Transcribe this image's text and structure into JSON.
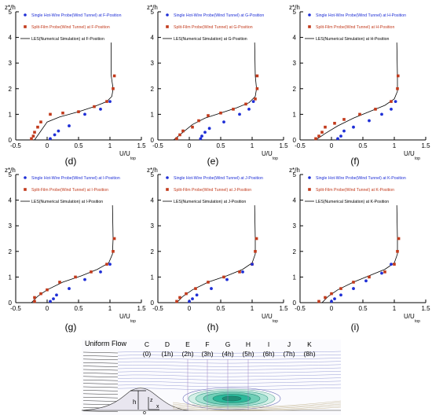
{
  "figure": {
    "panel_captions": [
      "(d)",
      "(e)",
      "(f)",
      "(g)",
      "(h)",
      "(i)"
    ],
    "axis_labels": {
      "y": "z*/h",
      "x_main": "U/U",
      "x_sub": "top"
    },
    "x_ticks": [
      "-0.5",
      "0",
      "0.5",
      "1",
      "1.5"
    ],
    "y_ticks": [
      "0",
      "1",
      "2",
      "3",
      "4",
      "5"
    ],
    "colors": {
      "hotwire": "#1f2fd6",
      "splitfilm": "#c23a1c",
      "les": "#000000",
      "contour_fill": "#2bb89a",
      "flow_lines": "#8a8fd0"
    }
  },
  "chart_data": [
    {
      "type": "scatter",
      "panel": "(d)",
      "xlim": [
        -0.5,
        1.5
      ],
      "ylim": [
        0,
        5
      ],
      "xlabel": "U/U top",
      "ylabel": "z*/h",
      "legend_placement": "top",
      "series": [
        {
          "name": "Single Hot-Wire Probe(Wind Tunnel) at F-Position",
          "marker": "circle",
          "x": [
            0.05,
            0.12,
            0.18,
            0.35,
            0.6,
            0.85,
            1.0
          ],
          "y": [
            0.05,
            0.2,
            0.35,
            0.55,
            1.0,
            1.2,
            1.5
          ]
        },
        {
          "name": "Split-Film Probe(Wind Tunnel) at F-Position",
          "marker": "square",
          "x": [
            -0.25,
            -0.22,
            -0.2,
            -0.15,
            -0.1,
            0.05,
            0.25,
            0.5,
            0.75,
            0.95,
            1.05,
            1.07
          ],
          "y": [
            0.05,
            0.15,
            0.3,
            0.5,
            0.7,
            1.0,
            1.05,
            1.1,
            1.3,
            1.5,
            2.0,
            2.5
          ]
        },
        {
          "name": "LES(Numerical Simulation) at F-Position",
          "marker": "line",
          "x": [
            -0.2,
            -0.1,
            0.0,
            0.2,
            0.5,
            0.75,
            0.95,
            1.03,
            1.05,
            1.02,
            1.02
          ],
          "y": [
            0.0,
            0.35,
            0.7,
            0.9,
            1.1,
            1.3,
            1.5,
            1.7,
            2.0,
            2.5,
            3.8
          ]
        }
      ]
    },
    {
      "type": "scatter",
      "panel": "(e)",
      "xlim": [
        -0.5,
        1.5
      ],
      "ylim": [
        0,
        5
      ],
      "xlabel": "U/U top",
      "ylabel": "z*/h",
      "legend_placement": "top",
      "series": [
        {
          "name": "Single Hot-Wire Probe(Wind Tunnel) at G-Position",
          "marker": "circle",
          "x": [
            0.18,
            0.2,
            0.25,
            0.32,
            0.55,
            0.8,
            0.95,
            1.02
          ],
          "y": [
            0.05,
            0.15,
            0.3,
            0.45,
            0.7,
            1.0,
            1.2,
            1.5
          ]
        },
        {
          "name": "Split-Film Probe(Wind Tunnel) at G-Position",
          "marker": "square",
          "x": [
            -0.2,
            -0.15,
            -0.1,
            0.05,
            0.15,
            0.3,
            0.5,
            0.7,
            0.9,
            1.05,
            1.08,
            1.08
          ],
          "y": [
            0.05,
            0.2,
            0.35,
            0.5,
            0.75,
            0.95,
            1.05,
            1.2,
            1.4,
            1.6,
            2.0,
            2.5
          ]
        },
        {
          "name": "LES(Numerical Simulation) at G-Position",
          "marker": "line",
          "x": [
            -0.25,
            -0.1,
            0.05,
            0.25,
            0.5,
            0.75,
            0.95,
            1.05,
            1.07,
            1.05,
            1.04
          ],
          "y": [
            0.0,
            0.3,
            0.6,
            0.85,
            1.05,
            1.25,
            1.45,
            1.7,
            2.0,
            2.5,
            3.8
          ]
        }
      ]
    },
    {
      "type": "scatter",
      "panel": "(f)",
      "xlim": [
        -0.5,
        1.5
      ],
      "ylim": [
        0,
        5
      ],
      "xlabel": "U/U top",
      "ylabel": "z*/h",
      "legend_placement": "top",
      "series": [
        {
          "name": "Single Hot-Wire Probe(Wind Tunnel) at H-Position",
          "marker": "circle",
          "x": [
            0.1,
            0.15,
            0.2,
            0.35,
            0.6,
            0.8,
            0.95,
            1.02
          ],
          "y": [
            0.05,
            0.15,
            0.35,
            0.5,
            0.75,
            1.0,
            1.2,
            1.5
          ]
        },
        {
          "name": "Split-Film Probe(Wind Tunnel) at H-Position",
          "marker": "square",
          "x": [
            -0.25,
            -0.2,
            -0.15,
            -0.1,
            0.05,
            0.2,
            0.45,
            0.7,
            0.95,
            1.05,
            1.06
          ],
          "y": [
            0.05,
            0.15,
            0.3,
            0.5,
            0.65,
            0.8,
            1.0,
            1.2,
            1.5,
            2.0,
            2.5
          ]
        },
        {
          "name": "LES(Numerical Simulation) at H-Position",
          "marker": "line",
          "x": [
            -0.25,
            -0.1,
            0.1,
            0.35,
            0.6,
            0.85,
            1.0,
            1.05,
            1.05,
            1.04
          ],
          "y": [
            0.0,
            0.25,
            0.55,
            0.85,
            1.1,
            1.35,
            1.6,
            1.9,
            2.5,
            3.8
          ]
        }
      ]
    },
    {
      "type": "scatter",
      "panel": "(g)",
      "xlim": [
        -0.5,
        1.5
      ],
      "ylim": [
        0,
        5
      ],
      "xlabel": "U/U top",
      "ylabel": "z*/h",
      "legend_placement": "top",
      "series": [
        {
          "name": "Single Hot-Wire Probe(Wind Tunnel) at I-Position",
          "marker": "circle",
          "x": [
            0.05,
            0.1,
            0.15,
            0.35,
            0.6,
            0.85,
            1.0
          ],
          "y": [
            0.05,
            0.15,
            0.3,
            0.55,
            0.9,
            1.2,
            1.5
          ]
        },
        {
          "name": "Split-Film Probe(Wind Tunnel) at I-Position",
          "marker": "square",
          "x": [
            -0.2,
            -0.2,
            -0.1,
            0.0,
            0.2,
            0.45,
            0.7,
            0.95,
            1.05,
            1.07
          ],
          "y": [
            0.05,
            0.2,
            0.35,
            0.5,
            0.8,
            1.0,
            1.2,
            1.5,
            2.0,
            2.5
          ]
        },
        {
          "name": "LES(Numerical Simulation) at I-Position",
          "marker": "line",
          "x": [
            -0.25,
            -0.15,
            0.0,
            0.25,
            0.55,
            0.8,
            0.98,
            1.04,
            1.05,
            1.04
          ],
          "y": [
            0.0,
            0.25,
            0.5,
            0.8,
            1.05,
            1.3,
            1.55,
            1.9,
            2.5,
            3.8
          ]
        }
      ]
    },
    {
      "type": "scatter",
      "panel": "(h)",
      "xlim": [
        -0.5,
        1.5
      ],
      "ylim": [
        0,
        5
      ],
      "xlabel": "U/U top",
      "ylabel": "z*/h",
      "legend_placement": "top",
      "series": [
        {
          "name": "Single Hot-Wire Probe(Wind Tunnel) at J-Position",
          "marker": "circle",
          "x": [
            0.0,
            0.05,
            0.12,
            0.35,
            0.6,
            0.85,
            1.0
          ],
          "y": [
            0.05,
            0.15,
            0.3,
            0.55,
            0.9,
            1.2,
            1.5
          ]
        },
        {
          "name": "Split-Film Probe(Wind Tunnel) at J-Position",
          "marker": "square",
          "x": [
            -0.2,
            -0.15,
            -0.05,
            0.1,
            0.3,
            0.55,
            0.8,
            1.0,
            1.05,
            1.07
          ],
          "y": [
            0.05,
            0.2,
            0.35,
            0.55,
            0.8,
            1.0,
            1.2,
            1.5,
            2.0,
            2.5
          ]
        },
        {
          "name": "LES(Numerical Simulation) at J-Position",
          "marker": "line",
          "x": [
            -0.2,
            -0.1,
            0.05,
            0.3,
            0.6,
            0.85,
            1.0,
            1.05,
            1.05,
            1.04
          ],
          "y": [
            0.0,
            0.25,
            0.5,
            0.8,
            1.05,
            1.3,
            1.55,
            1.9,
            2.5,
            3.8
          ]
        }
      ]
    },
    {
      "type": "scatter",
      "panel": "(i)",
      "xlim": [
        -0.5,
        1.5
      ],
      "ylim": [
        0,
        5
      ],
      "xlabel": "U/U top",
      "ylabel": "z*/h",
      "legend_placement": "top",
      "series": [
        {
          "name": "Single Hot-Wire Probe(Wind Tunnel) at K-Position",
          "marker": "circle",
          "x": [
            0.0,
            0.05,
            0.15,
            0.35,
            0.55,
            0.8,
            0.95
          ],
          "y": [
            0.05,
            0.15,
            0.3,
            0.55,
            0.85,
            1.15,
            1.5
          ]
        },
        {
          "name": "Split-Film Probe(Wind Tunnel) at K-Position",
          "marker": "square",
          "x": [
            -0.2,
            -0.1,
            0.0,
            0.15,
            0.35,
            0.6,
            0.85,
            1.0,
            1.05,
            1.07
          ],
          "y": [
            0.05,
            0.2,
            0.35,
            0.55,
            0.8,
            1.0,
            1.2,
            1.5,
            2.0,
            2.5
          ]
        },
        {
          "name": "LES(Numerical Simulation) at K-Position",
          "marker": "line",
          "x": [
            -0.15,
            -0.05,
            0.1,
            0.35,
            0.6,
            0.85,
            1.0,
            1.05,
            1.05,
            1.04
          ],
          "y": [
            0.0,
            0.25,
            0.5,
            0.8,
            1.05,
            1.3,
            1.55,
            1.9,
            2.5,
            3.8
          ]
        }
      ]
    }
  ],
  "flow_diagram": {
    "title": "Uniform Flow",
    "positions": [
      {
        "letter": "C",
        "dist": "(0)"
      },
      {
        "letter": "D",
        "dist": "(1h)"
      },
      {
        "letter": "E",
        "dist": "(2h)"
      },
      {
        "letter": "F",
        "dist": "(3h)"
      },
      {
        "letter": "G",
        "dist": "(4h)"
      },
      {
        "letter": "H",
        "dist": "(5h)"
      },
      {
        "letter": "I",
        "dist": "(6h)"
      },
      {
        "letter": "J",
        "dist": "(7h)"
      },
      {
        "letter": "K",
        "dist": "(8h)"
      }
    ],
    "labels": {
      "h": "h",
      "z": "z",
      "o": "o",
      "x": "x"
    }
  }
}
